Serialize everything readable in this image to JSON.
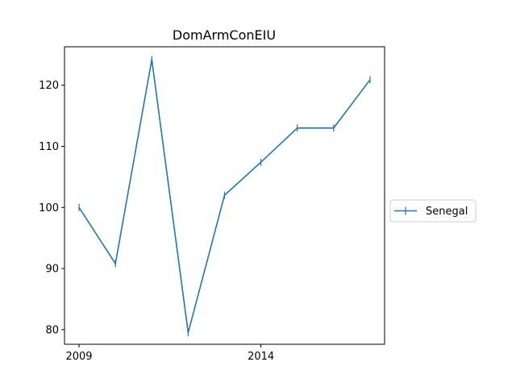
{
  "chart_data": {
    "type": "line",
    "title": "DomArmConEIU",
    "xlabel": "",
    "ylabel": "",
    "x": [
      2009,
      2010,
      2011,
      2012,
      2013,
      2014,
      2015,
      2016,
      2017
    ],
    "xlim": [
      2008.6,
      2017.4
    ],
    "ylim": [
      77.6,
      126.3
    ],
    "xticks": [
      2009,
      2014
    ],
    "yticks": [
      80,
      90,
      100,
      110,
      120
    ],
    "grid": false,
    "legend_position": "right",
    "series": [
      {
        "name": "Senegal",
        "color": "#1f77b4",
        "marker": "vertical-tick",
        "values": [
          100.0,
          90.8,
          124.2,
          79.5,
          102.0,
          107.4,
          113.0,
          113.0,
          120.9
        ]
      }
    ]
  }
}
